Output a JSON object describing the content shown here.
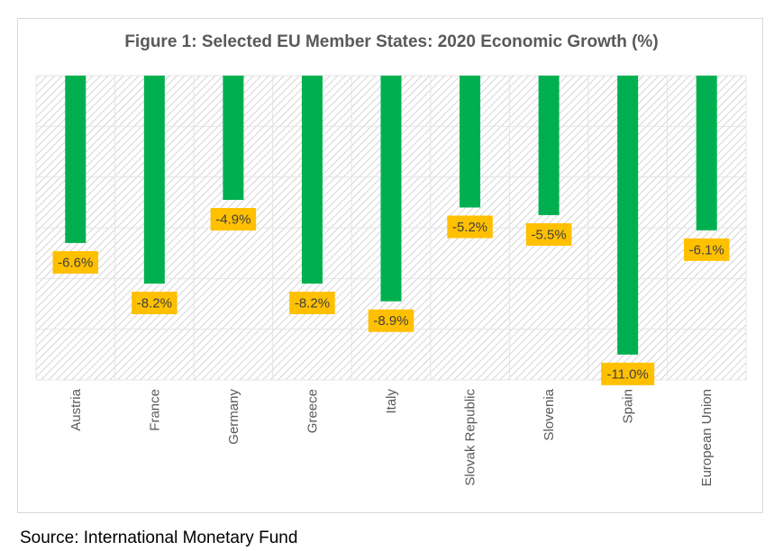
{
  "chart_data": {
    "type": "bar",
    "title": "Figure 1: Selected EU Member States: 2020 Economic Growth (%)",
    "categories": [
      "Austria",
      "France",
      "Germany",
      "Greece",
      "Italy",
      "Slovak Republic",
      "Slovenia",
      "Spain",
      "European Union"
    ],
    "values": [
      -6.6,
      -8.2,
      -4.9,
      -8.2,
      -8.9,
      -5.2,
      -5.5,
      -11.0,
      -6.1
    ],
    "data_labels": [
      "-6.6%",
      "-8.2%",
      "-4.9%",
      "-8.2%",
      "-8.9%",
      "-5.2%",
      "-5.5%",
      "-11.0%",
      "-6.1%"
    ],
    "xlabel": "",
    "ylabel": "",
    "ylim": [
      -12,
      0
    ],
    "grid": true,
    "bar_color": "#00b050",
    "label_color": "#ffc000"
  },
  "source": "Source: International Monetary Fund"
}
